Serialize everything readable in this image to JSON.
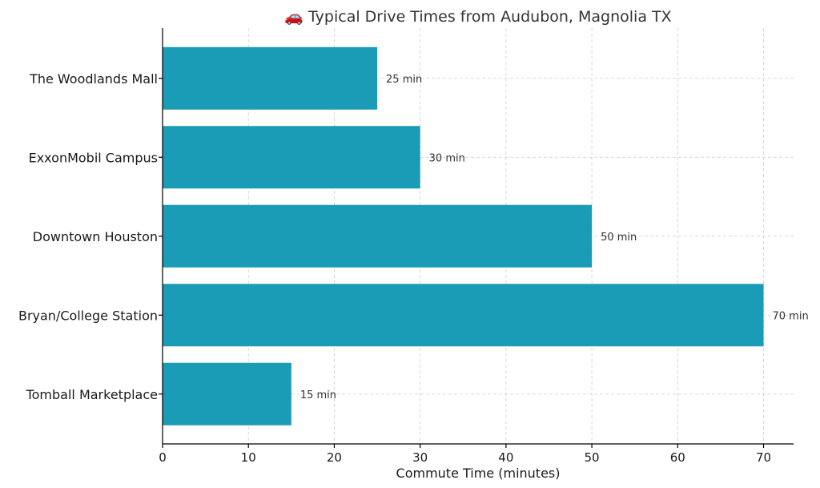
{
  "chart_data": {
    "type": "bar",
    "orientation": "horizontal",
    "title": "🚗 Typical Drive Times from Audubon, Magnolia TX",
    "xlabel": "Commute Time (minutes)",
    "ylabel": "",
    "categories": [
      "The Woodlands Mall",
      "ExxonMobil Campus",
      "Downtown Houston",
      "Bryan/College Station",
      "Tomball Marketplace"
    ],
    "values": [
      25,
      30,
      50,
      70,
      15
    ],
    "data_labels": [
      "25 min",
      "30 min",
      "50 min",
      "70 min",
      "15 min"
    ],
    "xlim": [
      0,
      73.5
    ],
    "xticks": [
      0,
      10,
      20,
      30,
      40,
      50,
      60,
      70
    ],
    "grid": true,
    "bar_color": "#1a9bb6"
  }
}
